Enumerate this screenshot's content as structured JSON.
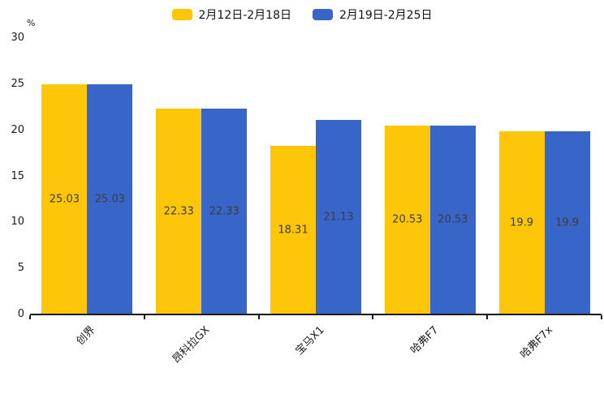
{
  "chart_data": {
    "type": "bar",
    "title": "",
    "xlabel": "",
    "ylabel": "%",
    "categories": [
      "创界",
      "昂科拉GX",
      "宝马X1",
      "哈弗F7",
      "哈弗F7x"
    ],
    "series": [
      {
        "name": "2月12日-2月18日",
        "color": "#FDC609",
        "values": [
          25.03,
          22.33,
          18.31,
          20.53,
          19.9
        ]
      },
      {
        "name": "2月19日-2月25日",
        "color": "#3866C8",
        "values": [
          25.03,
          22.33,
          21.13,
          20.53,
          19.9
        ]
      }
    ],
    "bar_value_labels": [
      "25.03",
      "22.33",
      "18.31",
      "21.13",
      "20.53",
      "19.9"
    ],
    "value_label_color": "#3d3d3d",
    "yticks": [
      0,
      5,
      10,
      15,
      20,
      25,
      30
    ],
    "ylim": [
      0,
      30
    ],
    "grid": false,
    "legend_position": "top",
    "bar_labels_inside": true
  }
}
